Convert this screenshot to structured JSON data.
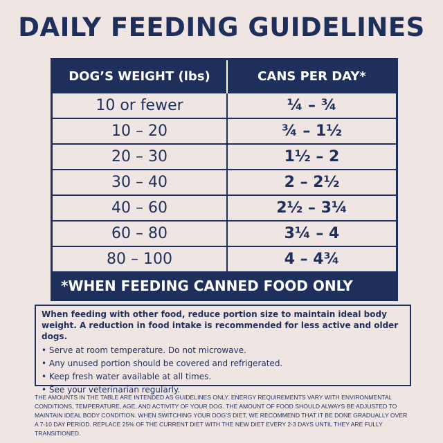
{
  "header": {
    "title": "DAILY FEEDING GUIDELINES"
  },
  "table": {
    "header": [
      "DOG’S WEIGHT (lbs)",
      "CANS PER DAY*"
    ],
    "rows": [
      [
        "10 or fewer",
        "¼ – ¾"
      ],
      [
        "10 – 20",
        "¾ – 1½"
      ],
      [
        "20 – 30",
        "1½ – 2"
      ],
      [
        "30 – 40",
        "2 – 2½"
      ],
      [
        "40 – 60",
        "2½ – 3¼"
      ],
      [
        "60 – 80",
        "3¼ – 4"
      ],
      [
        "80 – 100",
        "4 – 4¾"
      ]
    ],
    "footnote": "*WHEN FEEDING CANNED FOOD ONLY"
  },
  "notes": {
    "intro": "When feeding with other food, reduce portion size to maintain ideal body weight. A reduction in food intake is recommended for less active and older dogs.",
    "bullets": [
      "Serve at room temperature. Do not microwave.",
      "Any unused portion should be covered and refrigerated.",
      "Keep fresh water available at all times.",
      "See your veterinarian regularly."
    ]
  },
  "fine_print": "The amounts in the table are intended as guidelines only. Energy requirements vary with environmental conditions, temperature, age, and activity of your dog. The amount of food should always be adjusted to maintain ideal body condition. When switching your dog’s diet, we recommend that it be done gradually over a 7-10 day period. Replace 25% of the current diet with the new diet every 2-3 days until they are fully transitioned."
}
